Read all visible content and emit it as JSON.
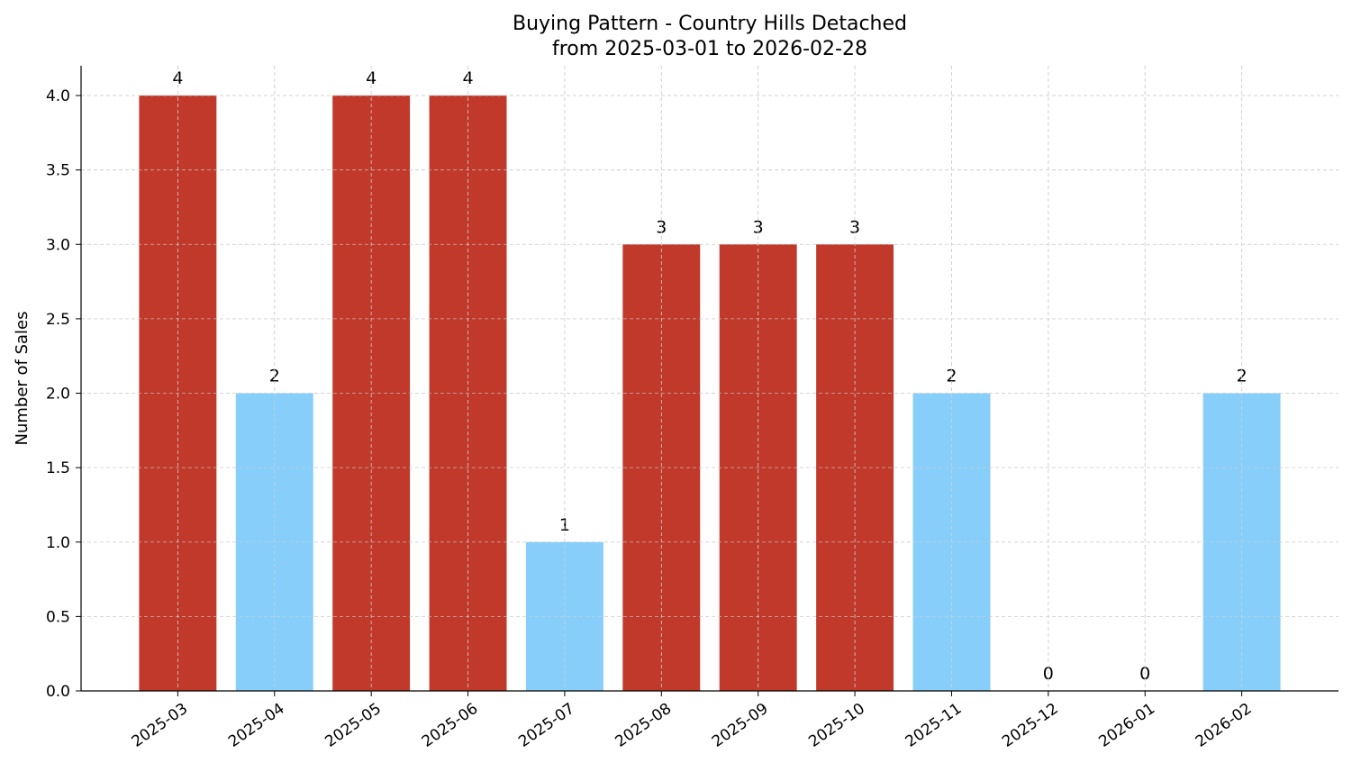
{
  "chart_data": {
    "type": "bar",
    "title": "Buying Pattern - Country Hills Detached",
    "subtitle": "from 2025-03-01 to 2026-02-28",
    "xlabel": "",
    "ylabel": "Number of Sales",
    "categories": [
      "2025-03",
      "2025-04",
      "2025-05",
      "2025-06",
      "2025-07",
      "2025-08",
      "2025-09",
      "2025-10",
      "2025-11",
      "2025-12",
      "2026-01",
      "2026-02"
    ],
    "values": [
      4,
      2,
      4,
      4,
      1,
      3,
      3,
      3,
      2,
      0,
      0,
      2
    ],
    "ylim": [
      0,
      4.2
    ],
    "yticks": [
      "0.0",
      "0.5",
      "1.0",
      "1.5",
      "2.0",
      "2.5",
      "3.0",
      "3.5",
      "4.0"
    ],
    "grid": true,
    "colors": {
      "high": "#c0392b",
      "low": "#87cefa"
    },
    "high_threshold": 3
  }
}
